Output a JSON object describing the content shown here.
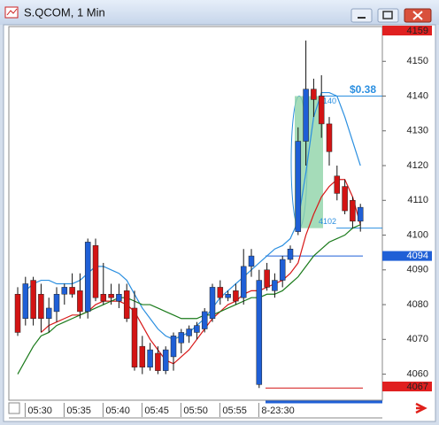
{
  "chart_data": {
    "type": "candlestick",
    "title": "S.QCOM, 1 Min",
    "categories": [
      null,
      null,
      null,
      "05:30",
      null,
      null,
      null,
      null,
      "05:35",
      null,
      null,
      null,
      null,
      "05:40",
      null,
      null,
      null,
      null,
      "05:45",
      null,
      null,
      null,
      null,
      "05:50",
      null,
      null,
      null,
      null,
      "05:55",
      null,
      null,
      null,
      null,
      "8-23:30",
      null,
      null,
      null,
      null,
      null,
      null,
      null,
      null,
      null,
      null,
      null
    ],
    "open": [
      4083,
      4076,
      4087,
      4083,
      4076,
      4078,
      4083,
      4085,
      4084,
      4078,
      4097,
      4083,
      4083,
      4081,
      4084,
      4079,
      4068,
      4062,
      4066,
      4061,
      4065,
      4069,
      4071,
      4072,
      4073,
      4076,
      4085,
      4082,
      4084,
      4082,
      4091,
      4057,
      4090,
      4084,
      4087,
      4093,
      4101,
      4127,
      4142,
      4140,
      4132,
      4117,
      4114,
      4110,
      4104
    ],
    "high": [
      4085,
      4088,
      4088,
      4086,
      4082,
      4085,
      4086,
      4089,
      4089,
      4099,
      4099,
      4092,
      4086,
      4086,
      4086,
      4084,
      4071,
      4069,
      4068,
      4068,
      4072,
      4073,
      4074,
      4075,
      4079,
      4086,
      4087,
      4084,
      4086,
      4096,
      4096,
      4090,
      4092,
      4089,
      4094,
      4097,
      4131,
      4156,
      4145,
      4146,
      4134,
      4120,
      4116,
      4111,
      4109
    ],
    "low": [
      4071,
      4074,
      4074,
      4072,
      4072,
      4075,
      4080,
      4082,
      4076,
      4076,
      4081,
      4080,
      4080,
      4079,
      4075,
      4061,
      4060,
      4061,
      4060,
      4060,
      4061,
      4066,
      4069,
      4070,
      4072,
      4075,
      4080,
      4081,
      4080,
      4080,
      4088,
      4056,
      4084,
      4082,
      4085,
      4092,
      4100,
      4120,
      4134,
      4128,
      4120,
      4110,
      4106,
      4102,
      4101
    ],
    "close": [
      4072,
      4086,
      4076,
      4076,
      4079,
      4083,
      4085,
      4083,
      4078,
      4098,
      4082,
      4081,
      4082,
      4083,
      4076,
      4062,
      4062,
      4067,
      4061,
      4067,
      4071,
      4072,
      4073,
      4074,
      4078,
      4085,
      4082,
      4083,
      4081,
      4091,
      4094,
      4087,
      4085,
      4087,
      4093,
      4096,
      4127,
      4142,
      4139,
      4132,
      4124,
      4112,
      4107,
      4104,
      4108
    ],
    "up_color": "#1f5fd6",
    "down_color": "#d31414",
    "lines": [
      {
        "color": "#2b8fe0",
        "values": [
          null,
          4084,
          4086,
          4087,
          4087,
          4086,
          4086,
          4086,
          4087,
          4089,
          4091,
          4091,
          4090,
          4089,
          4087,
          4083,
          4079,
          4076,
          4073,
          4071,
          4070,
          4071,
          4072,
          4074,
          4076,
          4079,
          4082,
          4084,
          4086,
          4088,
          4090,
          4092,
          4094,
          4096,
          4097,
          4099,
          4104,
          4118,
          4134,
          4141,
          4141,
          4140,
          4134,
          4127,
          4120
        ]
      },
      {
        "color": "#d81818",
        "values": [
          null,
          null,
          null,
          4072,
          4074,
          4075,
          4076,
          4077,
          4077,
          4078,
          4080,
          4081,
          4081,
          4081,
          4080,
          4078,
          4074,
          4070,
          4067,
          4064,
          4063,
          4065,
          4067,
          4070,
          4073,
          4076,
          4078,
          4080,
          4081,
          4083,
          4084,
          4084,
          4085,
          4086,
          4087,
          4089,
          4092,
          4100,
          4106,
          4111,
          4114,
          4116,
          4116,
          4111,
          4103
        ]
      },
      {
        "color": "#1a7a1a",
        "values": [
          4060,
          4064,
          4068,
          4071,
          4072,
          4074,
          4075,
          4076,
          4077,
          4078,
          4079,
          4080,
          4081,
          4082,
          4082,
          4081,
          4080,
          4080,
          4079,
          4078,
          4077,
          4076,
          4076,
          4076,
          4077,
          4077,
          4078,
          4079,
          4080,
          4081,
          4082,
          4082,
          4083,
          4083,
          4084,
          4086,
          4088,
          4091,
          4094,
          4096,
          4098,
          4099,
          4100,
          4102,
          4103
        ]
      }
    ],
    "ylim": [
      4052.5,
      4160
    ],
    "yticks": [
      4060,
      4070,
      4080,
      4090,
      4100,
      4110,
      4120,
      4130,
      4140,
      4150
    ],
    "range_high": 4140,
    "range_low": 4102,
    "range_label": "$0.38",
    "level": 4094,
    "low_line": 4056,
    "high_marker": "4159",
    "last_marker": 4094,
    "low_marker": "4067"
  }
}
